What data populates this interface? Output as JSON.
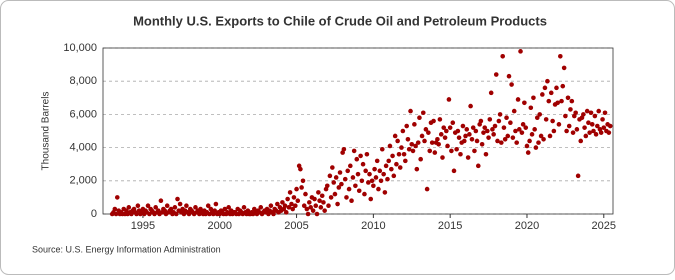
{
  "chart_data": {
    "type": "scatter",
    "title": "Monthly U.S. Exports to Chile of Crude Oil and Petroleum Products",
    "y_label": "Thousand Barrels",
    "source": "Source: U.S. Energy Information Administration",
    "color": "#a00000",
    "grid": true,
    "xlim": [
      1992.4,
      2025.6
    ],
    "xticks": [
      1995,
      2000,
      2005,
      2010,
      2015,
      2020,
      2025
    ],
    "ylim": [
      0,
      10000
    ],
    "yticks": [
      {
        "value": 0,
        "label": "0"
      },
      {
        "value": 2000,
        "label": "2,000"
      },
      {
        "value": 4000,
        "label": "4,000"
      },
      {
        "value": 6000,
        "label": "6,000"
      },
      {
        "value": 8000,
        "label": "8,000"
      },
      {
        "value": 10000,
        "label": "10,000"
      }
    ],
    "x": [
      1993.0,
      1993.08,
      1993.17,
      1993.25,
      1993.33,
      1993.42,
      1993.5,
      1993.58,
      1993.67,
      1993.75,
      1993.83,
      1993.92,
      1994.0,
      1994.08,
      1994.17,
      1994.25,
      1994.33,
      1994.42,
      1994.5,
      1994.58,
      1994.67,
      1994.75,
      1994.83,
      1994.92,
      1995.0,
      1995.08,
      1995.17,
      1995.25,
      1995.33,
      1995.42,
      1995.5,
      1995.58,
      1995.67,
      1995.75,
      1995.83,
      1995.92,
      1996.0,
      1996.08,
      1996.17,
      1996.25,
      1996.33,
      1996.42,
      1996.5,
      1996.58,
      1996.67,
      1996.75,
      1996.83,
      1996.92,
      1997.0,
      1997.08,
      1997.17,
      1997.25,
      1997.33,
      1997.42,
      1997.5,
      1997.58,
      1997.67,
      1997.75,
      1997.83,
      1997.92,
      1998.0,
      1998.08,
      1998.17,
      1998.25,
      1998.33,
      1998.42,
      1998.5,
      1998.58,
      1998.67,
      1998.75,
      1998.83,
      1998.92,
      1999.0,
      1999.08,
      1999.17,
      1999.25,
      1999.33,
      1999.42,
      1999.5,
      1999.58,
      1999.67,
      1999.75,
      1999.83,
      1999.92,
      2000.0,
      2000.08,
      2000.17,
      2000.25,
      2000.33,
      2000.42,
      2000.5,
      2000.58,
      2000.67,
      2000.75,
      2000.83,
      2000.92,
      2001.0,
      2001.08,
      2001.17,
      2001.25,
      2001.33,
      2001.42,
      2001.5,
      2001.58,
      2001.67,
      2001.75,
      2001.83,
      2001.92,
      2002.0,
      2002.08,
      2002.17,
      2002.25,
      2002.33,
      2002.42,
      2002.5,
      2002.58,
      2002.67,
      2002.75,
      2002.83,
      2002.92,
      2003.0,
      2003.08,
      2003.17,
      2003.25,
      2003.33,
      2003.42,
      2003.5,
      2003.58,
      2003.67,
      2003.75,
      2003.83,
      2003.92,
      2004.0,
      2004.08,
      2004.17,
      2004.25,
      2004.33,
      2004.42,
      2004.5,
      2004.58,
      2004.67,
      2004.75,
      2004.83,
      2004.92,
      2005.0,
      2005.08,
      2005.17,
      2005.25,
      2005.33,
      2005.42,
      2005.5,
      2005.58,
      2005.67,
      2005.75,
      2005.83,
      2005.92,
      2006.0,
      2006.08,
      2006.17,
      2006.25,
      2006.33,
      2006.42,
      2006.5,
      2006.58,
      2006.67,
      2006.75,
      2006.83,
      2006.92,
      2007.0,
      2007.08,
      2007.17,
      2007.25,
      2007.33,
      2007.42,
      2007.5,
      2007.58,
      2007.67,
      2007.75,
      2007.83,
      2007.92,
      2008.0,
      2008.08,
      2008.17,
      2008.25,
      2008.33,
      2008.42,
      2008.5,
      2008.58,
      2008.67,
      2008.75,
      2008.83,
      2008.92,
      2009.0,
      2009.08,
      2009.17,
      2009.25,
      2009.33,
      2009.42,
      2009.5,
      2009.58,
      2009.67,
      2009.75,
      2009.83,
      2009.92,
      2010.0,
      2010.08,
      2010.17,
      2010.25,
      2010.33,
      2010.42,
      2010.5,
      2010.58,
      2010.67,
      2010.75,
      2010.83,
      2010.92,
      2011.0,
      2011.08,
      2011.17,
      2011.25,
      2011.33,
      2011.42,
      2011.5,
      2011.58,
      2011.67,
      2011.75,
      2011.83,
      2011.92,
      2012.0,
      2012.08,
      2012.17,
      2012.25,
      2012.33,
      2012.42,
      2012.5,
      2012.58,
      2012.67,
      2012.75,
      2012.83,
      2012.92,
      2013.0,
      2013.08,
      2013.17,
      2013.25,
      2013.33,
      2013.42,
      2013.5,
      2013.58,
      2013.67,
      2013.75,
      2013.83,
      2013.92,
      2014.0,
      2014.08,
      2014.17,
      2014.25,
      2014.33,
      2014.42,
      2014.5,
      2014.58,
      2014.67,
      2014.75,
      2014.83,
      2014.92,
      2015.0,
      2015.08,
      2015.17,
      2015.25,
      2015.33,
      2015.42,
      2015.5,
      2015.58,
      2015.67,
      2015.75,
      2015.83,
      2015.92,
      2016.0,
      2016.08,
      2016.17,
      2016.25,
      2016.33,
      2016.42,
      2016.5,
      2016.58,
      2016.67,
      2016.75,
      2016.83,
      2016.92,
      2017.0,
      2017.08,
      2017.17,
      2017.25,
      2017.33,
      2017.42,
      2017.5,
      2017.58,
      2017.67,
      2017.75,
      2017.83,
      2017.92,
      2018.0,
      2018.08,
      2018.17,
      2018.25,
      2018.33,
      2018.42,
      2018.5,
      2018.58,
      2018.67,
      2018.75,
      2018.83,
      2018.92,
      2019.0,
      2019.08,
      2019.17,
      2019.25,
      2019.33,
      2019.42,
      2019.5,
      2019.58,
      2019.67,
      2019.75,
      2019.83,
      2019.92,
      2020.0,
      2020.08,
      2020.17,
      2020.25,
      2020.33,
      2020.42,
      2020.5,
      2020.58,
      2020.67,
      2020.75,
      2020.83,
      2020.92,
      2021.0,
      2021.08,
      2021.17,
      2021.25,
      2021.33,
      2021.42,
      2021.5,
      2021.58,
      2021.67,
      2021.75,
      2021.83,
      2021.92,
      2022.0,
      2022.08,
      2022.17,
      2022.25,
      2022.33,
      2022.42,
      2022.5,
      2022.58,
      2022.67,
      2022.75,
      2022.83,
      2022.92,
      2023.0,
      2023.08,
      2023.17,
      2023.25,
      2023.33,
      2023.42,
      2023.5,
      2023.58,
      2023.67,
      2023.75,
      2023.83,
      2023.92,
      2024.0,
      2024.08,
      2024.17,
      2024.25,
      2024.33,
      2024.42,
      2024.5,
      2024.58,
      2024.67,
      2024.75,
      2024.83,
      2024.92,
      2025.0,
      2025.08,
      2025.17,
      2025.25,
      2025.33,
      2025.42
    ],
    "values": [
      0,
      100,
      300,
      0,
      1000,
      200,
      0,
      100,
      0,
      300,
      0,
      200,
      0,
      400,
      100,
      0,
      200,
      300,
      100,
      0,
      500,
      200,
      0,
      100,
      300,
      0,
      200,
      100,
      500,
      0,
      300,
      200,
      100,
      0,
      400,
      100,
      200,
      0,
      800,
      100,
      300,
      200,
      0,
      500,
      100,
      200,
      300,
      0,
      100,
      400,
      0,
      900,
      200,
      600,
      100,
      300,
      0,
      200,
      500,
      100,
      0,
      300,
      200,
      100,
      0,
      400,
      100,
      200,
      0,
      300,
      100,
      0,
      200,
      0,
      100,
      500,
      0,
      300,
      100,
      0,
      200,
      600,
      0,
      100,
      0,
      200,
      100,
      0,
      300,
      0,
      100,
      400,
      0,
      200,
      0,
      100,
      100,
      0,
      300,
      0,
      200,
      100,
      0,
      400,
      100,
      0,
      200,
      0,
      0,
      100,
      0,
      300,
      100,
      0,
      200,
      100,
      400,
      0,
      100,
      200,
      100,
      300,
      0,
      200,
      500,
      100,
      0,
      300,
      200,
      600,
      100,
      400,
      200,
      700,
      300,
      500,
      100,
      900,
      400,
      1300,
      600,
      300,
      1000,
      500,
      1500,
      800,
      2900,
      2700,
      1600,
      2000,
      500,
      1200,
      300,
      0,
      700,
      400,
      1000,
      200,
      900,
      500,
      0,
      1300,
      800,
      400,
      1100,
      700,
      200,
      1500,
      1700,
      500,
      2300,
      1000,
      2800,
      1900,
      1200,
      2200,
      600,
      1600,
      2500,
      1800,
      3700,
      3900,
      2100,
      1000,
      2600,
      1500,
      2900,
      800,
      2200,
      3800,
      1700,
      3300,
      2400,
      1400,
      3500,
      2000,
      3000,
      1200,
      2600,
      3600,
      1900,
      2400,
      900,
      2000,
      1700,
      2700,
      2200,
      3200,
      1500,
      2600,
      2000,
      3900,
      2400,
      1300,
      2900,
      2100,
      3200,
      4100,
      2700,
      3500,
      2300,
      4700,
      3000,
      4400,
      3600,
      2800,
      4000,
      5000,
      3600,
      3200,
      5300,
      4500,
      3900,
      6200,
      4200,
      3800,
      5400,
      4100,
      2700,
      4300,
      5800,
      3300,
      4700,
      6100,
      4400,
      5100,
      1500,
      4900,
      3800,
      5500,
      4300,
      5600,
      3700,
      4300,
      4500,
      4200,
      5700,
      4800,
      3400,
      5200,
      4600,
      5000,
      4100,
      6900,
      5200,
      3800,
      5500,
      2600,
      4900,
      3900,
      5000,
      4600,
      3600,
      4300,
      5300,
      4400,
      4700,
      5100,
      3400,
      4800,
      6500,
      4500,
      5200,
      3800,
      5000,
      4400,
      2900,
      5400,
      5600,
      4200,
      4900,
      5200,
      3600,
      5000,
      4600,
      5700,
      7300,
      5100,
      4800,
      5300,
      8400,
      4400,
      5600,
      6000,
      4300,
      9500,
      5200,
      4500,
      5800,
      4700,
      8300,
      5500,
      7800,
      4600,
      6200,
      5000,
      4300,
      6900,
      5100,
      9800,
      4900,
      5400,
      6700,
      5200,
      4100,
      3700,
      4400,
      6400,
      4800,
      7000,
      5100,
      4000,
      5800,
      4300,
      6000,
      4700,
      7200,
      4500,
      7600,
      5700,
      8000,
      6800,
      4700,
      7300,
      5600,
      5000,
      6600,
      7600,
      6700,
      5400,
      9500,
      6800,
      7700,
      8800,
      5900,
      5000,
      7000,
      5300,
      6300,
      6800,
      4900,
      5900,
      6100,
      5100,
      2300,
      5700,
      4400,
      5800,
      6000,
      5200,
      4700,
      6200,
      5500,
      4900,
      6100,
      5400,
      5000,
      5900,
      4800,
      5300,
      6200,
      5100,
      4900,
      5700,
      5200,
      6100,
      5000,
      5400,
      4900,
      5300
    ]
  }
}
